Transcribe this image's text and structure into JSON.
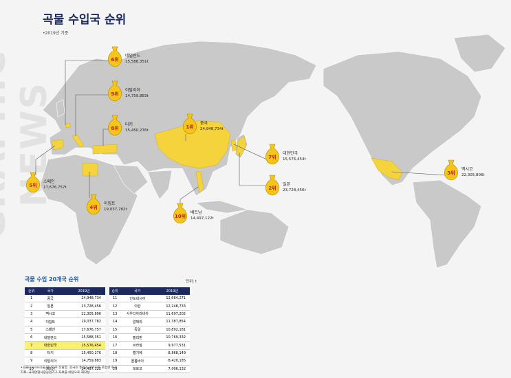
{
  "side_text": "GRAPHIC NEWS",
  "header": {
    "title": "곡물 수입국 순위",
    "subtitle": "•2019년 기준"
  },
  "map_labels": [
    {
      "rank": "6위",
      "country": "네덜란드",
      "amount": "15,588,351t"
    },
    {
      "rank": "9위",
      "country": "이탈리아",
      "amount": "14,759,883t"
    },
    {
      "rank": "8위",
      "country": "터키",
      "amount": "15,450,276t"
    },
    {
      "rank": "1위",
      "country": "중국",
      "amount": "24,948,734t"
    },
    {
      "rank": "7위",
      "country": "대한민국",
      "amount": "15,576,454t"
    },
    {
      "rank": "2위",
      "country": "일본",
      "amount": "23,728,456t"
    },
    {
      "rank": "3위",
      "country": "멕시코",
      "amount": "22,305,806t"
    },
    {
      "rank": "5위",
      "country": "스페인",
      "amount": "17,676,757t"
    },
    {
      "rank": "4위",
      "country": "이집트",
      "amount": "19,037,782t"
    },
    {
      "rank": "10위",
      "country": "베트남",
      "amount": "14,497,122t"
    }
  ],
  "table": {
    "title": "곡물 수입 20개국 순위",
    "unit": "단위: t",
    "headers": [
      "순위",
      "국가",
      "2019년"
    ],
    "left": [
      [
        "1",
        "중국",
        "24,948,734"
      ],
      [
        "2",
        "일본",
        "23,728,456"
      ],
      [
        "3",
        "멕시코",
        "22,305,806"
      ],
      [
        "4",
        "이집트",
        "19,037,782"
      ],
      [
        "5",
        "스페인",
        "17,676,757"
      ],
      [
        "6",
        "네덜란드",
        "15,588,351"
      ],
      [
        "7",
        "대한민국",
        "15,576,454"
      ],
      [
        "8",
        "터키",
        "15,450,276"
      ],
      [
        "9",
        "이탈리아",
        "14,759,883"
      ],
      [
        "10",
        "베트남",
        "14,497,122"
      ]
    ],
    "right": [
      [
        "11",
        "인도네시아",
        "12,664,271"
      ],
      [
        "12",
        "이란",
        "12,248,733"
      ],
      [
        "13",
        "사우디아라비아",
        "11,697,202"
      ],
      [
        "14",
        "알제리",
        "11,387,854"
      ],
      [
        "15",
        "독일",
        "10,892,181"
      ],
      [
        "16",
        "필리핀",
        "10,769,332"
      ],
      [
        "17",
        "브라질",
        "9,977,531"
      ],
      [
        "18",
        "벨기에",
        "8,868,149"
      ],
      [
        "19",
        "콜롬비아",
        "8,420,185"
      ],
      [
        "20",
        "모로코",
        "7,006,132"
      ]
    ]
  },
  "footnotes": [
    "•곡물(cereals)을 대상으로 산출함. 중국은 홍콩과 마카오를 포함한 수치.",
    "자료: 국제연합식량농업기구 자료를 바탕으로 재작성"
  ]
}
